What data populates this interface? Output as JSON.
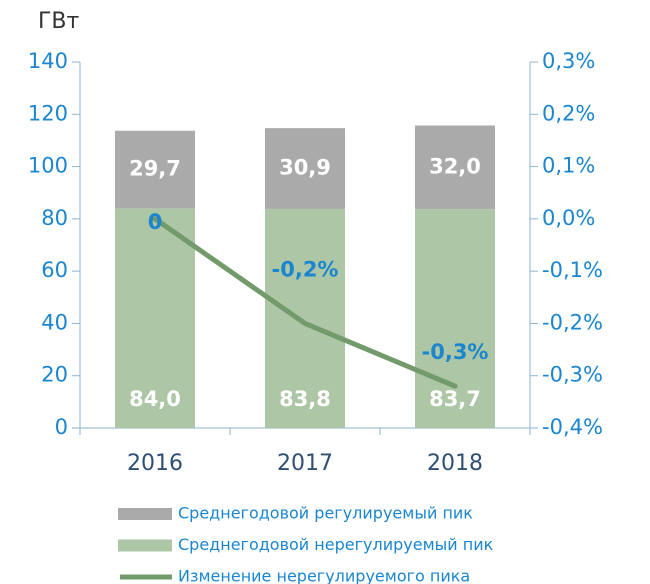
{
  "chart_data": {
    "type": "bar",
    "y_label": "ГВт",
    "categories": [
      "2016",
      "2017",
      "2018"
    ],
    "series": [
      {
        "name": "Среднегодовой регулируемый пик",
        "color": "#aaaaaa",
        "values": [
          29.7,
          30.9,
          32.0
        ],
        "value_labels": [
          "29,7",
          "30,9",
          "32,0"
        ]
      },
      {
        "name": "Среднегодовой нерегулируемый пик",
        "color": "#adc6a5",
        "values": [
          84.0,
          83.8,
          83.7
        ],
        "value_labels": [
          "84,0",
          "83,8",
          "83,7"
        ]
      },
      {
        "name": "Изменение нерегулируемого пика",
        "type": "line",
        "axis": "y2",
        "color": "#739a6a",
        "values": [
          0,
          -0.2,
          -0.32
        ],
        "value_labels": [
          "0",
          "-0,2%",
          "-0,3%"
        ]
      }
    ],
    "ylim": [
      0,
      140
    ],
    "yticks": [
      0,
      20,
      40,
      60,
      80,
      100,
      120,
      140
    ],
    "y2lim": [
      -0.4,
      0.3
    ],
    "y2ticks": [
      {
        "value": -0.4,
        "label": "-0,4%"
      },
      {
        "value": -0.3,
        "label": "-0,3%"
      },
      {
        "value": -0.2,
        "label": "-0,2%"
      },
      {
        "value": -0.1,
        "label": "-0,1%"
      },
      {
        "value": 0,
        "label": "0,0%"
      },
      {
        "value": 0.1,
        "label": "0,1%"
      },
      {
        "value": 0.2,
        "label": "0,2%"
      },
      {
        "value": 0.3,
        "label": "0,3%"
      }
    ]
  }
}
